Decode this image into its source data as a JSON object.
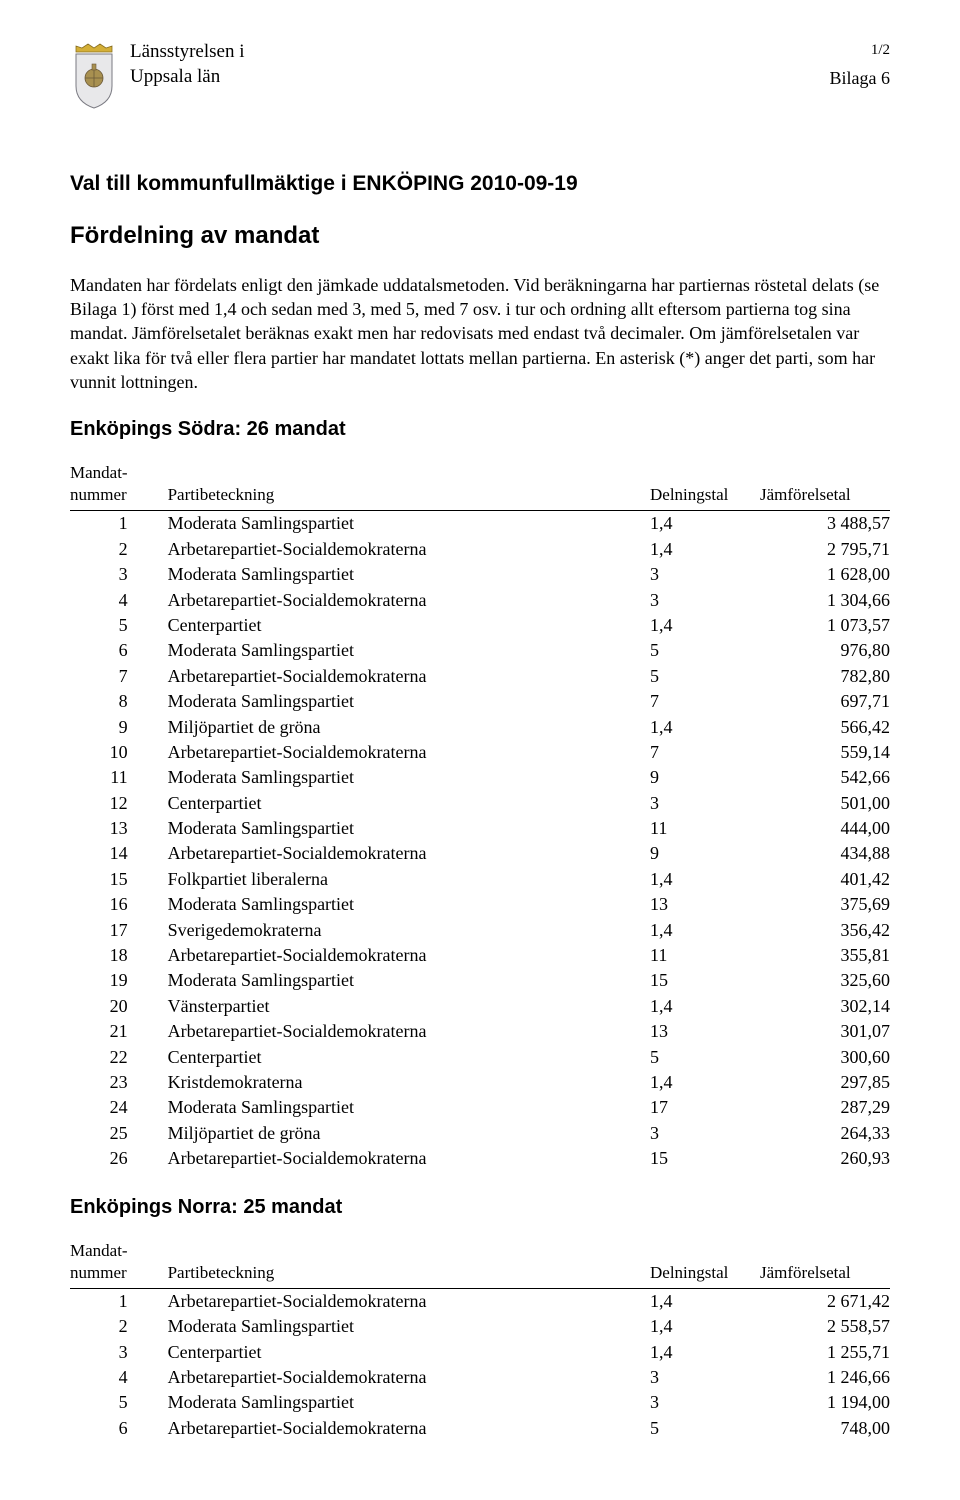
{
  "header": {
    "authority_line1": "Länsstyrelsen i",
    "authority_line2": "Uppsala län",
    "pagenum": "1/2",
    "attachment": "Bilaga 6"
  },
  "title": "Val till kommunfullmäktige i ENKÖPING 2010-09-19",
  "subtitle": "Fördelning av mandat",
  "body": "Mandaten har fördelats enligt den jämkade uddatalsmetoden. Vid beräkningarna har partiernas röstetal delats (se Bilaga 1) först med 1,4 och sedan med 3, med 5, med 7 osv. i tur och ordning allt eftersom partierna tog sina mandat. Jämförelsetalet beräknas exakt men har redovisats med endast två decimaler. Om jämförelsetalen var exakt lika för två eller flera partier har mandatet lottats mellan partierna. En asterisk (*) anger det parti, som har vunnit lottningen.",
  "table_headers": {
    "mandat_l1": "Mandat-",
    "mandat_l2": "nummer",
    "party": "Partibeteckning",
    "deln": "Delningstal",
    "jam": "Jämförelsetal"
  },
  "section1": {
    "title": "Enköpings Södra: 26 mandat",
    "rows": [
      {
        "n": "1",
        "p": "Moderata Samlingspartiet",
        "d": "1,4",
        "j": "3 488,57"
      },
      {
        "n": "2",
        "p": "Arbetarepartiet-Socialdemokraterna",
        "d": "1,4",
        "j": "2 795,71"
      },
      {
        "n": "3",
        "p": "Moderata Samlingspartiet",
        "d": "3",
        "j": "1 628,00"
      },
      {
        "n": "4",
        "p": "Arbetarepartiet-Socialdemokraterna",
        "d": "3",
        "j": "1 304,66"
      },
      {
        "n": "5",
        "p": "Centerpartiet",
        "d": "1,4",
        "j": "1 073,57"
      },
      {
        "n": "6",
        "p": "Moderata Samlingspartiet",
        "d": "5",
        "j": "976,80"
      },
      {
        "n": "7",
        "p": "Arbetarepartiet-Socialdemokraterna",
        "d": "5",
        "j": "782,80"
      },
      {
        "n": "8",
        "p": "Moderata Samlingspartiet",
        "d": "7",
        "j": "697,71"
      },
      {
        "n": "9",
        "p": "Miljöpartiet de gröna",
        "d": "1,4",
        "j": "566,42"
      },
      {
        "n": "10",
        "p": "Arbetarepartiet-Socialdemokraterna",
        "d": "7",
        "j": "559,14"
      },
      {
        "n": "11",
        "p": "Moderata Samlingspartiet",
        "d": "9",
        "j": "542,66"
      },
      {
        "n": "12",
        "p": "Centerpartiet",
        "d": "3",
        "j": "501,00"
      },
      {
        "n": "13",
        "p": "Moderata Samlingspartiet",
        "d": "11",
        "j": "444,00"
      },
      {
        "n": "14",
        "p": "Arbetarepartiet-Socialdemokraterna",
        "d": "9",
        "j": "434,88"
      },
      {
        "n": "15",
        "p": "Folkpartiet liberalerna",
        "d": "1,4",
        "j": "401,42"
      },
      {
        "n": "16",
        "p": "Moderata Samlingspartiet",
        "d": "13",
        "j": "375,69"
      },
      {
        "n": "17",
        "p": "Sverigedemokraterna",
        "d": "1,4",
        "j": "356,42"
      },
      {
        "n": "18",
        "p": "Arbetarepartiet-Socialdemokraterna",
        "d": "11",
        "j": "355,81"
      },
      {
        "n": "19",
        "p": "Moderata Samlingspartiet",
        "d": "15",
        "j": "325,60"
      },
      {
        "n": "20",
        "p": "Vänsterpartiet",
        "d": "1,4",
        "j": "302,14"
      },
      {
        "n": "21",
        "p": "Arbetarepartiet-Socialdemokraterna",
        "d": "13",
        "j": "301,07"
      },
      {
        "n": "22",
        "p": "Centerpartiet",
        "d": "5",
        "j": "300,60"
      },
      {
        "n": "23",
        "p": "Kristdemokraterna",
        "d": "1,4",
        "j": "297,85"
      },
      {
        "n": "24",
        "p": "Moderata Samlingspartiet",
        "d": "17",
        "j": "287,29"
      },
      {
        "n": "25",
        "p": "Miljöpartiet de gröna",
        "d": "3",
        "j": "264,33"
      },
      {
        "n": "26",
        "p": "Arbetarepartiet-Socialdemokraterna",
        "d": "15",
        "j": "260,93"
      }
    ]
  },
  "section2": {
    "title": "Enköpings Norra: 25 mandat",
    "rows": [
      {
        "n": "1",
        "p": "Arbetarepartiet-Socialdemokraterna",
        "d": "1,4",
        "j": "2 671,42"
      },
      {
        "n": "2",
        "p": "Moderata Samlingspartiet",
        "d": "1,4",
        "j": "2 558,57"
      },
      {
        "n": "3",
        "p": "Centerpartiet",
        "d": "1,4",
        "j": "1 255,71"
      },
      {
        "n": "4",
        "p": "Arbetarepartiet-Socialdemokraterna",
        "d": "3",
        "j": "1 246,66"
      },
      {
        "n": "5",
        "p": "Moderata Samlingspartiet",
        "d": "3",
        "j": "1 194,00"
      },
      {
        "n": "6",
        "p": "Arbetarepartiet-Socialdemokraterna",
        "d": "5",
        "j": "748,00"
      }
    ]
  },
  "crest_colors": {
    "crown": "#d4af37",
    "shield_bg": "#e8e8ea",
    "shield_border": "#7a7a82",
    "orb": "#a89050"
  }
}
